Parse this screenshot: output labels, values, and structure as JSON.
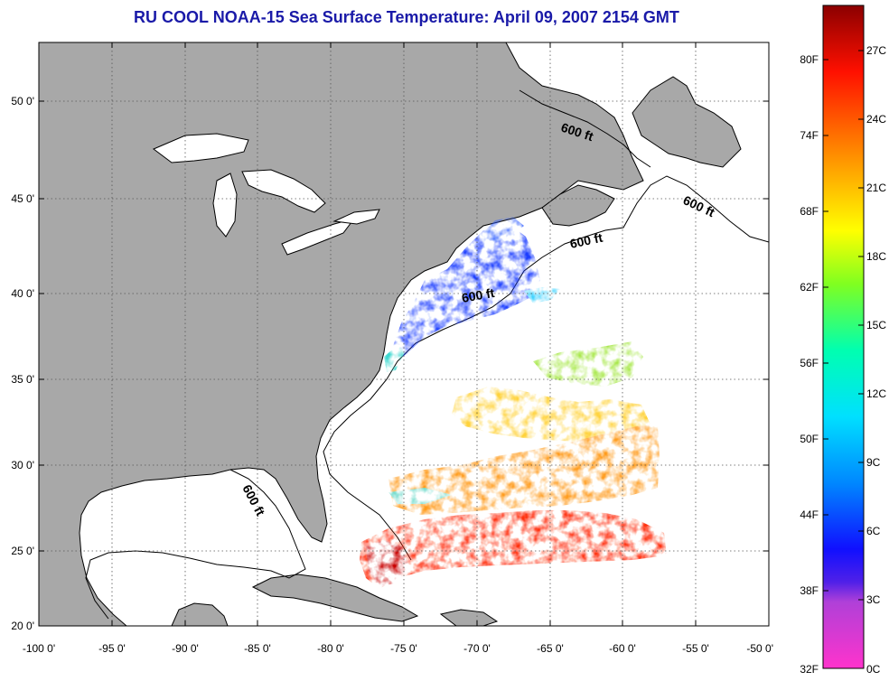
{
  "title": "RU COOL  NOAA-15  Sea Surface Temperature:  April 09, 2007 2154 GMT",
  "map": {
    "lon_range": [
      -100,
      -50
    ],
    "lat_range": [
      20,
      52.5
    ],
    "lon_ticks": [
      "-100 0'",
      "-95 0'",
      "-90 0'",
      "-85 0'",
      "-80 0'",
      "-75 0'",
      "-70 0'",
      "-65 0'",
      "-60 0'",
      "-55 0'",
      "-50 0'"
    ],
    "lat_ticks": [
      "20 0'",
      "25 0'",
      "30 0'",
      "35 0'",
      "40 0'",
      "45 0'",
      "50 0'"
    ],
    "grid": "dotted",
    "land_color": "#a8a8a8",
    "no_data_color": "#ffffff",
    "contour_labels": [
      {
        "text": "600 ft",
        "lon": -64.0,
        "lat": 48.2,
        "angle": 18
      },
      {
        "text": "600 ft",
        "lon": -52.5,
        "lat": 45.2,
        "angle": 25
      },
      {
        "text": "600 ft",
        "lon": -63.7,
        "lat": 43.2,
        "angle": -12
      },
      {
        "text": "600 ft",
        "lon": -69.7,
        "lat": 39.8,
        "angle": -10
      },
      {
        "text": "600 ft",
        "lon": -84.3,
        "lat": 27.3,
        "angle": 62
      }
    ]
  },
  "colorbar": {
    "fahrenheit_labels": [
      "80F",
      "74F",
      "68F",
      "62F",
      "56F",
      "50F",
      "44F",
      "38F",
      "32F"
    ],
    "celsius_labels": [
      "27C",
      "24C",
      "21C",
      "18C",
      "15C",
      "12C",
      "9C",
      "6C",
      "3C",
      "0C"
    ],
    "range_c": [
      0,
      28
    ],
    "colors": [
      "#ff33cc",
      "#9933cc",
      "#3300ff",
      "#0066ff",
      "#00ccff",
      "#00ffcc",
      "#66ff33",
      "#ffff00",
      "#ffcc00",
      "#ff8800",
      "#ff3300",
      "#cc0000",
      "#8b0000"
    ]
  }
}
